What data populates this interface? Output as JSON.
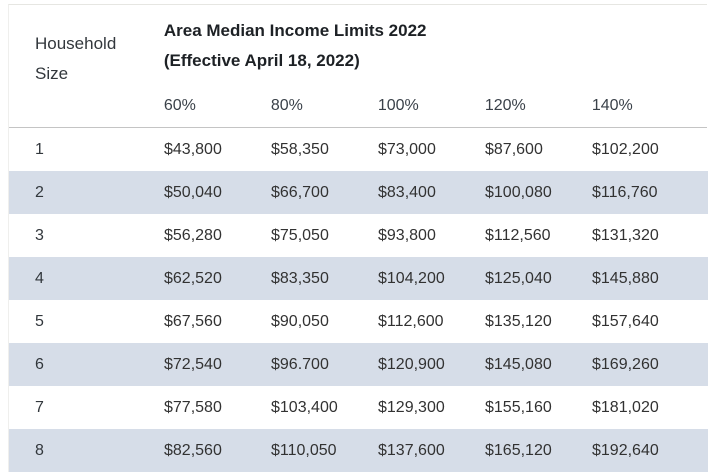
{
  "table": {
    "corner_label": "Household Size",
    "title_line1": "Area Median Income Limits 2022",
    "title_line2": "(Effective April 18, 2022)",
    "columns": [
      "60%",
      "80%",
      "100%",
      "120%",
      "140%"
    ],
    "rows": [
      {
        "household_size": "1",
        "values": [
          "$43,800",
          "$58,350",
          "$73,000",
          "$87,600",
          "$102,200"
        ]
      },
      {
        "household_size": "2",
        "values": [
          "$50,040",
          "$66,700",
          "$83,400",
          "$100,080",
          "$116,760"
        ]
      },
      {
        "household_size": "3",
        "values": [
          "$56,280",
          "$75,050",
          "$93,800",
          "$112,560",
          "$131,320"
        ]
      },
      {
        "household_size": "4",
        "values": [
          "$62,520",
          "$83,350",
          "$104,200",
          "$125,040",
          "$145,880"
        ]
      },
      {
        "household_size": "5",
        "values": [
          "$67,560",
          "$90,050",
          "$112,600",
          "$135,120",
          "$157,640"
        ]
      },
      {
        "household_size": "6",
        "values": [
          "$72,540",
          "$96.700",
          "$120,900",
          "$145,080",
          "$169,260"
        ]
      },
      {
        "household_size": "7",
        "values": [
          "$77,580",
          "$103,400",
          "$129,300",
          "$155,160",
          "$181,020"
        ]
      },
      {
        "household_size": "8",
        "values": [
          "$82,560",
          "$110,050",
          "$137,600",
          "$165,120",
          "$192,640"
        ]
      }
    ]
  },
  "colors": {
    "stripe": "#d6dde8",
    "header_band": "#d6dde8",
    "header_divider": "#c4c4c4",
    "title_text": "#1d2125",
    "body_text": "#323232"
  }
}
